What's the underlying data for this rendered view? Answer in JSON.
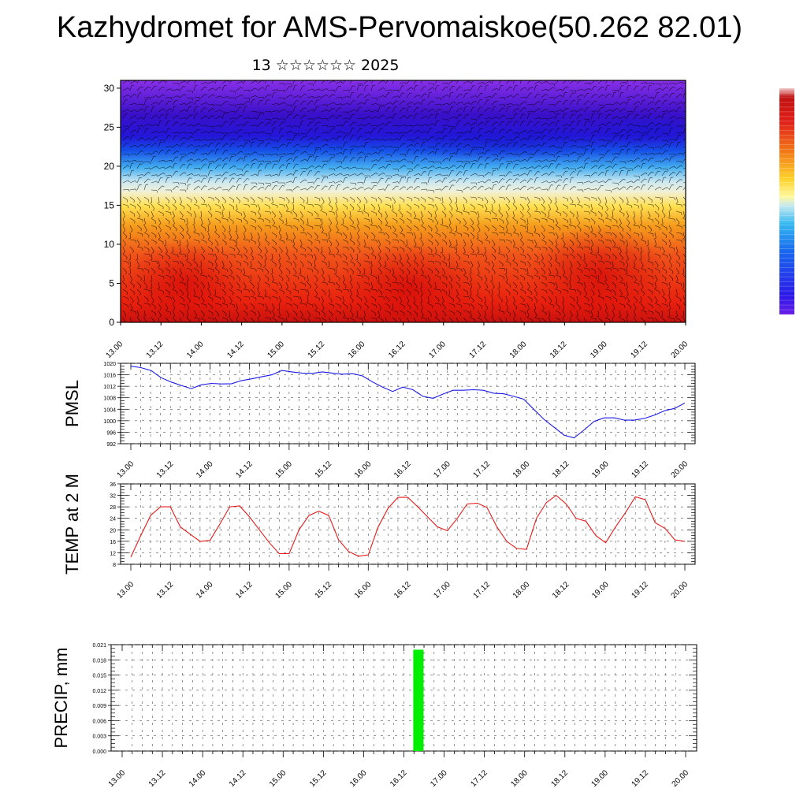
{
  "header": {
    "title": "Kazhydromet for AMS-Pervomaiskoe(50.262 82.01)",
    "subtitle": "13 ☆☆☆☆☆☆ 2025"
  },
  "chart_data": [
    {
      "type": "heatmap",
      "ylim": [
        0,
        31
      ],
      "yticks": [
        "0",
        "5",
        "10",
        "15",
        "20",
        "25",
        "30"
      ],
      "xticks": [
        "13.00",
        "13.12",
        "14.00",
        "14.12",
        "15.00",
        "15.12",
        "16.00",
        "16.12",
        "17.00",
        "17.12",
        "18.00",
        "18.12",
        "19.00",
        "19.12",
        "20.00"
      ],
      "colorbar": "purple-blue-cyan-yellow-orange-red",
      "overlay": "wind barbs"
    },
    {
      "type": "line",
      "ylabel": "PMSL",
      "ylim": [
        992,
        1020
      ],
      "yticks": [
        "992",
        "996",
        "1000",
        "1004",
        "1008",
        "1012",
        "1016",
        "1020"
      ],
      "xticks": [
        "13.00",
        "13.12",
        "14.00",
        "14.12",
        "15.00",
        "15.12",
        "16.00",
        "16.12",
        "17.00",
        "17.12",
        "18.00",
        "18.12",
        "19.00",
        "19.12",
        "20.00"
      ],
      "line_color": "#1a1ae6",
      "values": [
        1019,
        1018.5,
        1017.5,
        1015,
        1013.5,
        1012.3,
        1011.2,
        1012.5,
        1013,
        1012.8,
        1012.9,
        1014,
        1014.6,
        1015.3,
        1016,
        1017.5,
        1017,
        1016.6,
        1016.5,
        1017,
        1016.6,
        1016.2,
        1016.4,
        1015.6,
        1013.5,
        1011.7,
        1010.2,
        1011.7,
        1010.8,
        1008.5,
        1007.8,
        1009.3,
        1010.6,
        1010.6,
        1010.8,
        1010.6,
        1009.6,
        1009.4,
        1008.5,
        1007.5,
        1004,
        1000.5,
        997.8,
        995,
        994,
        996.8,
        999.8,
        1001,
        1001,
        1000.2,
        1000.2,
        1000.8,
        1002,
        1003.5,
        1004.3,
        1006.2
      ]
    },
    {
      "type": "line",
      "ylabel": "TEMP at 2 M",
      "ylim": [
        8,
        36
      ],
      "yticks": [
        "8",
        "12",
        "16",
        "20",
        "24",
        "28",
        "32",
        "36"
      ],
      "xticks": [
        "13.00",
        "13.12",
        "14.00",
        "14.12",
        "15.00",
        "15.12",
        "16.00",
        "16.12",
        "17.00",
        "17.12",
        "18.00",
        "18.12",
        "19.00",
        "19.12",
        "20.00"
      ],
      "line_color": "#e61a1a",
      "values": [
        10.5,
        18,
        25,
        28,
        28,
        21,
        18.5,
        16,
        16.3,
        22,
        28,
        28.3,
        24.5,
        20,
        15.5,
        11.7,
        11.7,
        20,
        25,
        26.5,
        25,
        16.5,
        12.5,
        10.8,
        11.3,
        21,
        27.5,
        31.3,
        31.3,
        28,
        24.5,
        21,
        19.7,
        24,
        29,
        29.3,
        27.8,
        21,
        16,
        13.5,
        13.2,
        24,
        29.5,
        32,
        29,
        24,
        23,
        18,
        15.5,
        21,
        26,
        31.5,
        30.5,
        22.5,
        20.5,
        16.5,
        16
      ]
    },
    {
      "type": "bar",
      "ylabel": "PRECIP, mm",
      "ylim": [
        0,
        0.021
      ],
      "yticks": [
        "0.000",
        "0.003",
        "0.006",
        "0.009",
        "0.012",
        "0.015",
        "0.018",
        "0.021"
      ],
      "xticks": [
        "13.00",
        "13.12",
        "14.00",
        "14.12",
        "15.00",
        "15.12",
        "16.00",
        "16.12",
        "17.00",
        "17.12",
        "18.00",
        "18.12",
        "19.00",
        "19.12",
        "20.00"
      ],
      "bar_color": "#00ee00",
      "bars": [
        {
          "x_day": 3.68,
          "value": 0.02
        }
      ]
    }
  ]
}
